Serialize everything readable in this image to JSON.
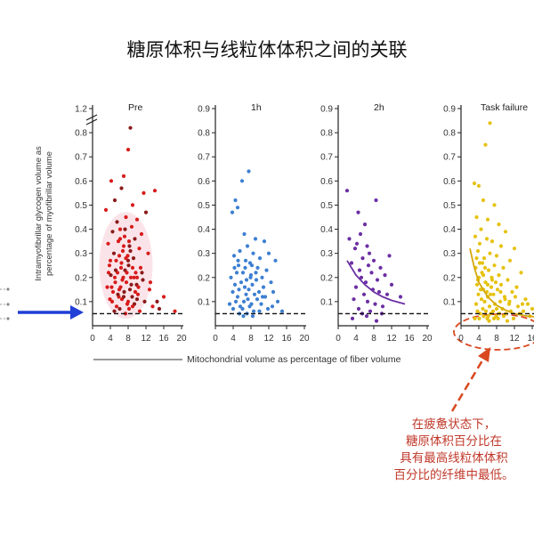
{
  "slide": {
    "title": "糖原体积与线粒体体积之间的关联",
    "y_axis_label_line1": "Intramyofibrillar glycogen volume as",
    "y_axis_label_line2": "percentage of myofibrillar volume",
    "x_axis_label": "Mitochondrial volume as percentage of fiber volume",
    "callout_lines": [
      "在疲惫状态下，",
      "糖原体积百分比在",
      "具有最高线粒体体积",
      "百分比的纤维中最低。"
    ],
    "colors": {
      "pre": "#d81b1b",
      "pre_dark": "#8b1a1a",
      "h1": "#3d7fd1",
      "h2": "#6b2fa3",
      "task": "#e6c20f",
      "arrow": "#1f3fd6",
      "callout": "#c0392b"
    }
  },
  "chart_data": [
    {
      "type": "scatter",
      "title": "Pre",
      "xlabel": "Mitochondrial volume as percentage of fiber volume",
      "ylabel": "Intramyofibrillar glycogen volume as percentage of myofibrillar volume",
      "xlim": [
        0,
        20
      ],
      "ylim": [
        0,
        1.2
      ],
      "axis_break": true,
      "x_ticks": [
        0,
        4,
        8,
        12,
        16,
        20
      ],
      "y_ticks": [
        0.1,
        0.2,
        0.3,
        0.4,
        0.5,
        0.6,
        0.7,
        0.8,
        1.2
      ],
      "reference_line_y": 0.05,
      "points": [
        [
          4.2,
          0.6
        ],
        [
          8.5,
          0.82
        ],
        [
          8.0,
          0.73
        ],
        [
          7.0,
          0.62
        ],
        [
          6.5,
          0.57
        ],
        [
          14.0,
          0.56
        ],
        [
          11.5,
          0.55
        ],
        [
          5.0,
          0.52
        ],
        [
          9.0,
          0.5
        ],
        [
          3.0,
          0.48
        ],
        [
          12.0,
          0.47
        ],
        [
          7.5,
          0.45
        ],
        [
          10.0,
          0.44
        ],
        [
          5.5,
          0.43
        ],
        [
          8.8,
          0.41
        ],
        [
          6.2,
          0.4
        ],
        [
          4.5,
          0.39
        ],
        [
          11.0,
          0.38
        ],
        [
          7.2,
          0.37
        ],
        [
          9.5,
          0.36
        ],
        [
          5.8,
          0.35
        ],
        [
          3.5,
          0.34
        ],
        [
          8.3,
          0.33
        ],
        [
          10.5,
          0.32
        ],
        [
          6.8,
          0.31
        ],
        [
          4.8,
          0.3
        ],
        [
          12.5,
          0.3
        ],
        [
          7.9,
          0.29
        ],
        [
          9.2,
          0.28
        ],
        [
          5.3,
          0.27
        ],
        [
          6.5,
          0.26
        ],
        [
          8.1,
          0.25
        ],
        [
          3.8,
          0.25
        ],
        [
          10.8,
          0.24
        ],
        [
          7.3,
          0.23
        ],
        [
          5.6,
          0.22
        ],
        [
          9.7,
          0.22
        ],
        [
          4.1,
          0.21
        ],
        [
          6.9,
          0.2
        ],
        [
          8.6,
          0.2
        ],
        [
          11.3,
          0.19
        ],
        [
          5.1,
          0.18
        ],
        [
          7.6,
          0.18
        ],
        [
          9.9,
          0.17
        ],
        [
          3.3,
          0.16
        ],
        [
          6.3,
          0.16
        ],
        [
          8.4,
          0.15
        ],
        [
          12.8,
          0.15
        ],
        [
          4.6,
          0.14
        ],
        [
          7.1,
          0.14
        ],
        [
          10.2,
          0.13
        ],
        [
          5.9,
          0.12
        ],
        [
          8.9,
          0.12
        ],
        [
          3.9,
          0.11
        ],
        [
          6.6,
          0.11
        ],
        [
          11.7,
          0.1
        ],
        [
          4.4,
          0.1
        ],
        [
          7.8,
          0.09
        ],
        [
          9.4,
          0.09
        ],
        [
          5.4,
          0.08
        ],
        [
          13.5,
          0.08
        ],
        [
          6.1,
          0.07
        ],
        [
          8.2,
          0.07
        ],
        [
          10.6,
          0.06
        ],
        [
          4.9,
          0.06
        ],
        [
          7.4,
          0.05
        ],
        [
          16.0,
          0.12
        ],
        [
          15.0,
          0.07
        ],
        [
          18.5,
          0.06
        ],
        [
          13.0,
          0.18
        ],
        [
          14.5,
          0.1
        ],
        [
          6.0,
          0.29
        ],
        [
          7.0,
          0.33
        ],
        [
          8.0,
          0.27
        ],
        [
          9.0,
          0.24
        ],
        [
          10.0,
          0.2
        ],
        [
          5.2,
          0.23
        ],
        [
          6.7,
          0.19
        ],
        [
          7.7,
          0.22
        ],
        [
          8.7,
          0.17
        ],
        [
          9.6,
          0.14
        ],
        [
          4.3,
          0.16
        ],
        [
          5.7,
          0.13
        ],
        [
          6.4,
          0.24
        ],
        [
          7.5,
          0.28
        ],
        [
          8.5,
          0.31
        ],
        [
          9.3,
          0.2
        ],
        [
          10.3,
          0.16
        ],
        [
          11.1,
          0.22
        ],
        [
          4.0,
          0.27
        ],
        [
          6.0,
          0.15
        ],
        [
          7.0,
          0.12
        ],
        [
          8.0,
          0.1
        ],
        [
          9.0,
          0.08
        ],
        [
          10.0,
          0.11
        ],
        [
          5.0,
          0.2
        ],
        [
          6.2,
          0.36
        ],
        [
          7.3,
          0.4
        ],
        [
          8.2,
          0.35
        ],
        [
          3.6,
          0.22
        ]
      ]
    },
    {
      "type": "scatter",
      "title": "1h",
      "xlim": [
        0,
        20
      ],
      "ylim": [
        0,
        0.9
      ],
      "x_ticks": [
        0,
        4,
        8,
        12,
        16,
        20
      ],
      "y_ticks": [
        0.1,
        0.2,
        0.3,
        0.4,
        0.5,
        0.6,
        0.7,
        0.8,
        0.9
      ],
      "reference_line_y": 0.05,
      "points": [
        [
          7.5,
          0.64
        ],
        [
          6.0,
          0.6
        ],
        [
          4.5,
          0.52
        ],
        [
          5.0,
          0.49
        ],
        [
          3.8,
          0.47
        ],
        [
          6.5,
          0.38
        ],
        [
          9.0,
          0.36
        ],
        [
          11.0,
          0.35
        ],
        [
          7.2,
          0.33
        ],
        [
          5.5,
          0.31
        ],
        [
          12.0,
          0.3
        ],
        [
          8.5,
          0.3
        ],
        [
          4.2,
          0.29
        ],
        [
          10.0,
          0.28
        ],
        [
          6.8,
          0.27
        ],
        [
          13.5,
          0.27
        ],
        [
          7.8,
          0.26
        ],
        [
          5.2,
          0.25
        ],
        [
          9.5,
          0.24
        ],
        [
          11.5,
          0.23
        ],
        [
          4.8,
          0.22
        ],
        [
          6.2,
          0.22
        ],
        [
          8.0,
          0.21
        ],
        [
          10.5,
          0.2
        ],
        [
          3.5,
          0.2
        ],
        [
          7.0,
          0.19
        ],
        [
          9.2,
          0.19
        ],
        [
          5.8,
          0.18
        ],
        [
          12.5,
          0.18
        ],
        [
          4.4,
          0.17
        ],
        [
          8.3,
          0.17
        ],
        [
          6.6,
          0.16
        ],
        [
          10.8,
          0.16
        ],
        [
          5.3,
          0.15
        ],
        [
          7.5,
          0.15
        ],
        [
          9.8,
          0.14
        ],
        [
          3.9,
          0.14
        ],
        [
          6.9,
          0.13
        ],
        [
          8.8,
          0.13
        ],
        [
          11.2,
          0.12
        ],
        [
          5.0,
          0.12
        ],
        [
          7.3,
          0.11
        ],
        [
          9.4,
          0.11
        ],
        [
          4.6,
          0.1
        ],
        [
          6.4,
          0.1
        ],
        [
          8.1,
          0.09
        ],
        [
          10.3,
          0.09
        ],
        [
          5.6,
          0.08
        ],
        [
          7.7,
          0.08
        ],
        [
          12.8,
          0.08
        ],
        [
          4.0,
          0.07
        ],
        [
          6.1,
          0.07
        ],
        [
          8.6,
          0.06
        ],
        [
          9.9,
          0.06
        ],
        [
          5.4,
          0.05
        ],
        [
          7.1,
          0.05
        ],
        [
          14.0,
          0.1
        ],
        [
          13.0,
          0.14
        ],
        [
          15.0,
          0.06
        ],
        [
          6.3,
          0.04
        ],
        [
          8.4,
          0.04
        ],
        [
          3.2,
          0.09
        ],
        [
          10.6,
          0.12
        ],
        [
          11.8,
          0.07
        ],
        [
          7.9,
          0.2
        ],
        [
          9.1,
          0.22
        ],
        [
          5.1,
          0.27
        ],
        [
          6.7,
          0.24
        ],
        [
          8.2,
          0.25
        ],
        [
          4.3,
          0.24
        ]
      ]
    },
    {
      "type": "scatter",
      "title": "2h",
      "xlim": [
        0,
        20
      ],
      "ylim": [
        0,
        0.9
      ],
      "x_ticks": [
        0,
        4,
        8,
        12,
        16,
        20
      ],
      "y_ticks": [
        0.1,
        0.2,
        0.3,
        0.4,
        0.5,
        0.6,
        0.7,
        0.8,
        0.9
      ],
      "reference_line_y": 0.05,
      "trend_curve": [
        [
          2,
          0.27
        ],
        [
          4,
          0.21
        ],
        [
          6,
          0.17
        ],
        [
          8,
          0.14
        ],
        [
          10,
          0.12
        ],
        [
          12,
          0.105
        ],
        [
          15,
          0.09
        ]
      ],
      "points": [
        [
          2.0,
          0.56
        ],
        [
          8.5,
          0.52
        ],
        [
          4.5,
          0.47
        ],
        [
          6.0,
          0.42
        ],
        [
          5.0,
          0.38
        ],
        [
          2.5,
          0.36
        ],
        [
          4.2,
          0.34
        ],
        [
          6.5,
          0.33
        ],
        [
          3.8,
          0.32
        ],
        [
          7.0,
          0.3
        ],
        [
          11.5,
          0.29
        ],
        [
          5.5,
          0.28
        ],
        [
          8.0,
          0.27
        ],
        [
          3.0,
          0.26
        ],
        [
          6.8,
          0.25
        ],
        [
          9.5,
          0.24
        ],
        [
          4.8,
          0.23
        ],
        [
          7.5,
          0.22
        ],
        [
          10.5,
          0.21
        ],
        [
          5.2,
          0.2
        ],
        [
          8.8,
          0.19
        ],
        [
          6.2,
          0.18
        ],
        [
          12.0,
          0.17
        ],
        [
          4.0,
          0.16
        ],
        [
          7.8,
          0.15
        ],
        [
          9.2,
          0.14
        ],
        [
          5.8,
          0.13
        ],
        [
          11.0,
          0.13
        ],
        [
          14.0,
          0.12
        ],
        [
          3.5,
          0.11
        ],
        [
          6.6,
          0.1
        ],
        [
          8.3,
          0.09
        ],
        [
          10.0,
          0.08
        ],
        [
          4.6,
          0.07
        ],
        [
          7.2,
          0.06
        ],
        [
          5.4,
          0.05
        ],
        [
          9.8,
          0.05
        ],
        [
          6.4,
          0.04
        ],
        [
          3.2,
          0.03
        ],
        [
          8.6,
          0.02
        ]
      ]
    },
    {
      "type": "scatter",
      "title": "Task failure",
      "xlim": [
        0,
        20
      ],
      "ylim": [
        0,
        0.9
      ],
      "x_ticks": [
        0,
        4,
        8,
        12,
        16
      ],
      "y_ticks": [
        0.1,
        0.2,
        0.3,
        0.4,
        0.5,
        0.6,
        0.7,
        0.8,
        0.9
      ],
      "reference_line_y": 0.05,
      "trend_curve": [
        [
          2,
          0.32
        ],
        [
          3,
          0.24
        ],
        [
          4,
          0.18
        ],
        [
          6,
          0.12
        ],
        [
          8,
          0.085
        ],
        [
          10,
          0.065
        ],
        [
          12,
          0.05
        ],
        [
          15,
          0.04
        ],
        [
          18,
          0.035
        ]
      ],
      "points": [
        [
          6.5,
          0.84
        ],
        [
          5.5,
          0.75
        ],
        [
          3.0,
          0.59
        ],
        [
          4.0,
          0.58
        ],
        [
          5.0,
          0.52
        ],
        [
          7.5,
          0.5
        ],
        [
          3.5,
          0.45
        ],
        [
          6.0,
          0.44
        ],
        [
          8.5,
          0.42
        ],
        [
          4.5,
          0.4
        ],
        [
          10.0,
          0.39
        ],
        [
          3.2,
          0.37
        ],
        [
          5.8,
          0.36
        ],
        [
          7.0,
          0.35
        ],
        [
          4.2,
          0.34
        ],
        [
          9.0,
          0.33
        ],
        [
          12.0,
          0.32
        ],
        [
          3.8,
          0.31
        ],
        [
          6.5,
          0.3
        ],
        [
          8.0,
          0.29
        ],
        [
          5.2,
          0.28
        ],
        [
          11.0,
          0.27
        ],
        [
          4.8,
          0.26
        ],
        [
          7.5,
          0.25
        ],
        [
          9.5,
          0.24
        ],
        [
          3.3,
          0.24
        ],
        [
          6.2,
          0.23
        ],
        [
          13.5,
          0.22
        ],
        [
          5.0,
          0.21
        ],
        [
          8.5,
          0.21
        ],
        [
          4.0,
          0.2
        ],
        [
          7.0,
          0.19
        ],
        [
          10.5,
          0.19
        ],
        [
          5.5,
          0.18
        ],
        [
          3.6,
          0.17
        ],
        [
          9.0,
          0.17
        ],
        [
          6.8,
          0.16
        ],
        [
          12.5,
          0.16
        ],
        [
          4.4,
          0.15
        ],
        [
          8.2,
          0.15
        ],
        [
          5.8,
          0.14
        ],
        [
          11.5,
          0.14
        ],
        [
          3.9,
          0.13
        ],
        [
          7.3,
          0.13
        ],
        [
          9.8,
          0.12
        ],
        [
          6.0,
          0.12
        ],
        [
          4.6,
          0.11
        ],
        [
          14.5,
          0.11
        ],
        [
          8.8,
          0.1
        ],
        [
          5.3,
          0.1
        ],
        [
          7.6,
          0.09
        ],
        [
          10.8,
          0.09
        ],
        [
          3.4,
          0.09
        ],
        [
          6.4,
          0.08
        ],
        [
          12.8,
          0.08
        ],
        [
          4.9,
          0.07
        ],
        [
          8.0,
          0.07
        ],
        [
          9.3,
          0.07
        ],
        [
          5.6,
          0.06
        ],
        [
          11.2,
          0.06
        ],
        [
          3.7,
          0.06
        ],
        [
          7.2,
          0.06
        ],
        [
          6.7,
          0.05
        ],
        [
          13.2,
          0.05
        ],
        [
          4.3,
          0.05
        ],
        [
          8.6,
          0.05
        ],
        [
          10.1,
          0.05
        ],
        [
          5.1,
          0.04
        ],
        [
          15.5,
          0.04
        ],
        [
          7.9,
          0.04
        ],
        [
          6.1,
          0.04
        ],
        [
          9.6,
          0.04
        ],
        [
          4.1,
          0.03
        ],
        [
          11.8,
          0.03
        ],
        [
          5.9,
          0.03
        ],
        [
          8.3,
          0.03
        ],
        [
          3.1,
          0.03
        ],
        [
          7.4,
          0.03
        ],
        [
          10.4,
          0.02
        ],
        [
          6.3,
          0.02
        ],
        [
          14.0,
          0.06
        ],
        [
          16.0,
          0.07
        ],
        [
          15.0,
          0.09
        ],
        [
          4.7,
          0.22
        ],
        [
          5.4,
          0.24
        ],
        [
          6.9,
          0.2
        ],
        [
          7.8,
          0.18
        ],
        [
          3.5,
          0.28
        ],
        [
          4.2,
          0.26
        ],
        [
          5.0,
          0.15
        ],
        [
          6.0,
          0.17
        ],
        [
          8.9,
          0.14
        ],
        [
          9.9,
          0.11
        ],
        [
          10.9,
          0.1
        ],
        [
          12.2,
          0.12
        ],
        [
          13.8,
          0.09
        ],
        [
          3.8,
          0.19
        ],
        [
          6.6,
          0.13
        ]
      ]
    }
  ]
}
